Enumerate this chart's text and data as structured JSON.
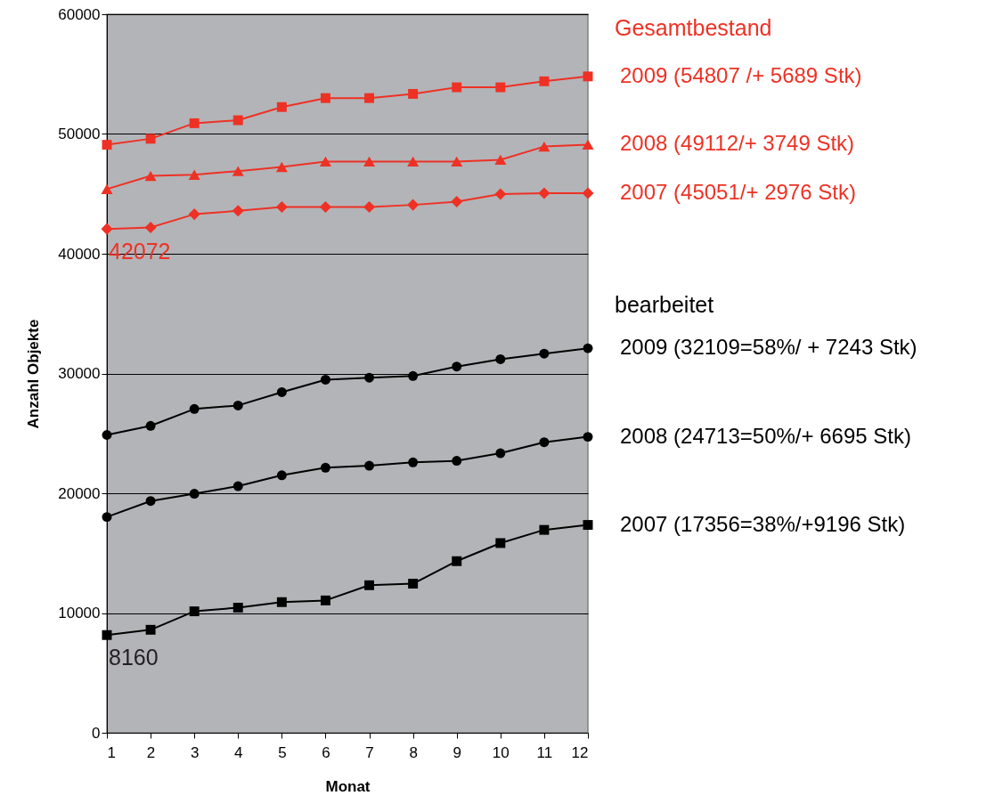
{
  "chart_data": {
    "type": "line",
    "xlabel": "Monat",
    "ylabel": "Anzahl Objekte",
    "x": [
      1,
      2,
      3,
      4,
      5,
      6,
      7,
      8,
      9,
      10,
      11,
      12
    ],
    "xlim": [
      1,
      12
    ],
    "xticks": [
      1,
      2,
      3,
      4,
      5,
      6,
      7,
      8,
      9,
      10,
      11,
      12
    ],
    "ylim": [
      0,
      60000
    ],
    "yticks": [
      0,
      10000,
      20000,
      30000,
      40000,
      50000,
      60000
    ],
    "grid": "y",
    "legend": false,
    "line_style": "solid",
    "series": [
      {
        "name": "2009   (54807 /+ 5689 Stk)",
        "color": "#ee3124",
        "marker": "square",
        "values": [
          49100,
          49600,
          50900,
          51150,
          52250,
          53000,
          53000,
          53350,
          53900,
          53900,
          54400,
          54807
        ]
      },
      {
        "name": "2008   (49112/+ 3749 Stk)",
        "color": "#ee3124",
        "marker": "triangle",
        "values": [
          45400,
          46500,
          46600,
          46900,
          47250,
          47700,
          47700,
          47700,
          47700,
          47850,
          48950,
          49112
        ]
      },
      {
        "name": "2007   (45051/+ 2976 Stk)",
        "color": "#ee3124",
        "marker": "diamond",
        "values": [
          42072,
          42200,
          43300,
          43580,
          43900,
          43900,
          43900,
          44080,
          44350,
          44980,
          45050,
          45051
        ]
      },
      {
        "name": "2009   (32109=58%/ + 7243 Stk)",
        "color": "#000000",
        "marker": "circle",
        "values": [
          24870,
          25630,
          27040,
          27330,
          28440,
          29480,
          29650,
          29790,
          30580,
          31190,
          31660,
          32109
        ]
      },
      {
        "name": "2008   (24713=50%/+ 6695 Stk)",
        "color": "#000000",
        "marker": "circle",
        "values": [
          18020,
          19350,
          19960,
          20590,
          21500,
          22130,
          22300,
          22580,
          22710,
          23340,
          24260,
          24713
        ]
      },
      {
        "name": "2007   (17356=38%/+9196 Stk)",
        "color": "#000000",
        "marker": "square",
        "values": [
          8160,
          8600,
          10140,
          10450,
          10910,
          11050,
          12320,
          12450,
          14330,
          15840,
          16940,
          17356
        ]
      }
    ],
    "annotations": [
      "Gesamtbestand",
      "bearbeitet",
      {
        "text": "42072",
        "x": 1,
        "y": 42072
      },
      {
        "text": "8160",
        "x": 1,
        "y": 8160
      }
    ]
  }
}
